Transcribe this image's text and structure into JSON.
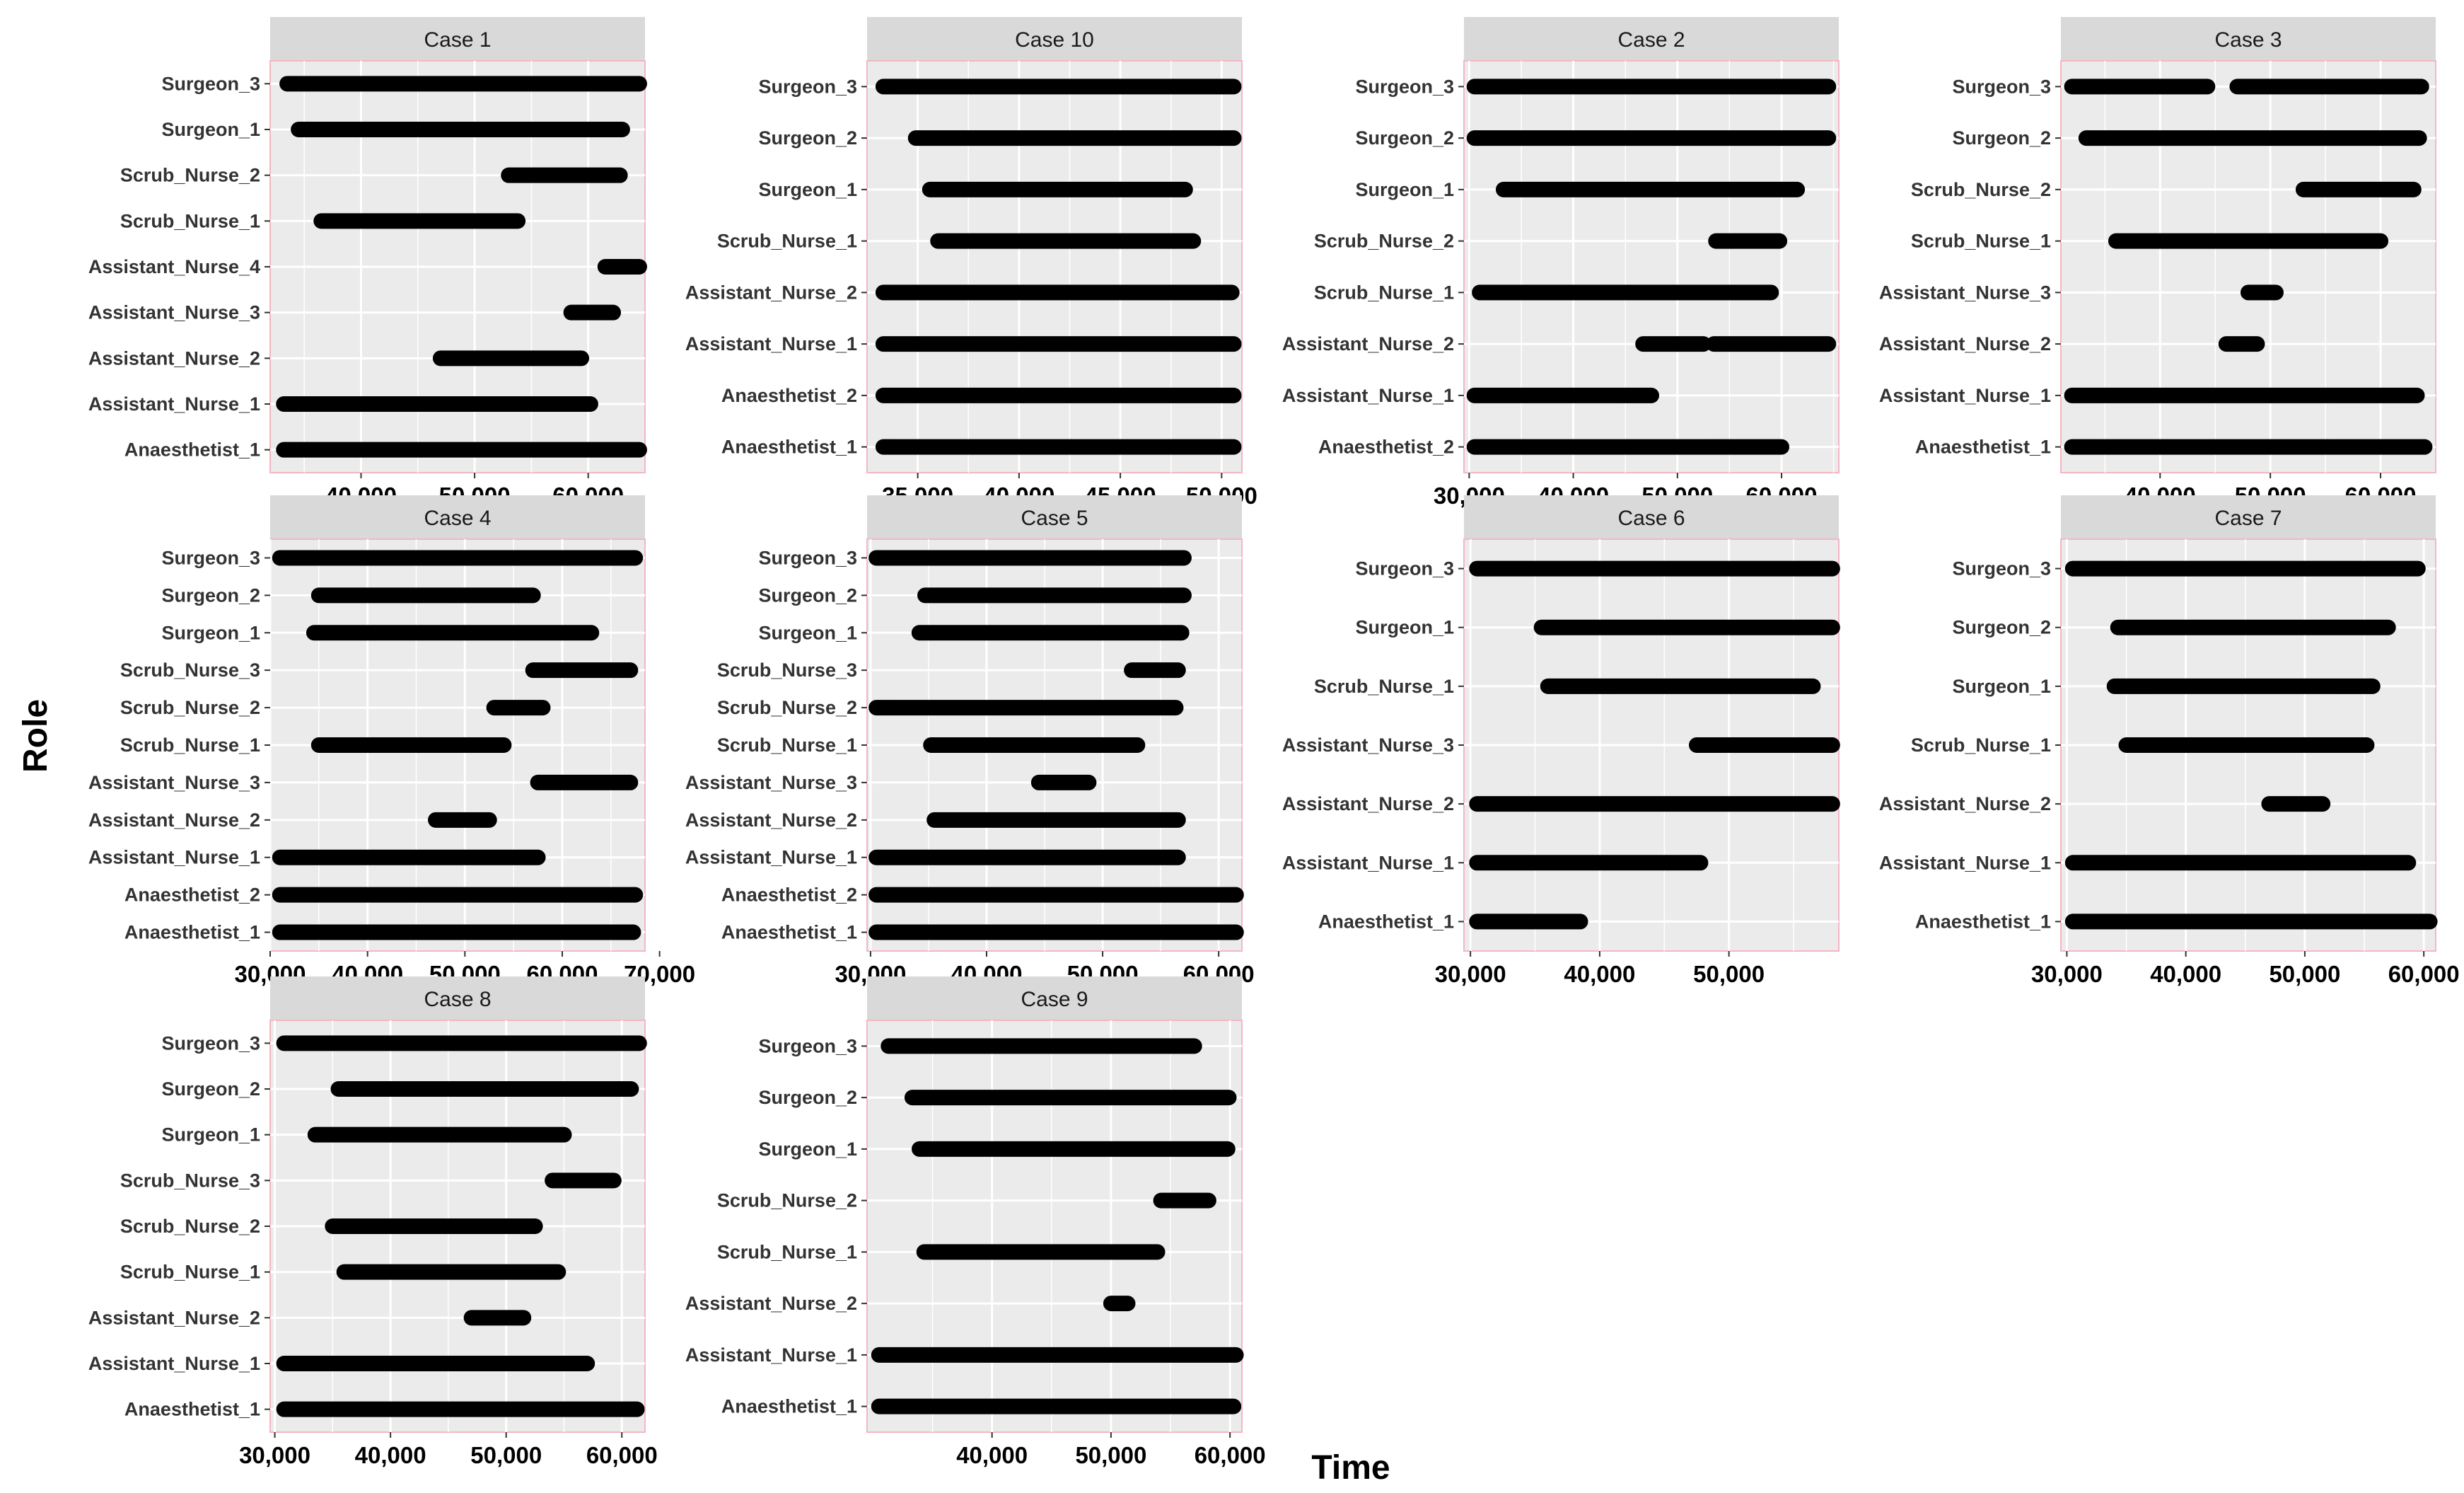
{
  "chart_data": {
    "type": "gantt",
    "xlabel": "Time",
    "ylabel": "Role",
    "grid": true,
    "colors": {
      "segment": "#000000",
      "panel_bg": "#ebebeb",
      "strip_bg": "#d9d9d9",
      "panel_border": "#f4b6c2",
      "grid": "#ffffff"
    },
    "facets": [
      {
        "title": "Case 1",
        "xlim": [
          32000,
          65000
        ],
        "xticks": [
          40000,
          50000,
          60000
        ],
        "xtick_labels": [
          "40,000",
          "50,000",
          "60,000"
        ],
        "roles": [
          "Surgeon_3",
          "Surgeon_1",
          "Scrub_Nurse_2",
          "Scrub_Nurse_1",
          "Assistant_Nurse_4",
          "Assistant_Nurse_3",
          "Assistant_Nurse_2",
          "Assistant_Nurse_1",
          "Anaesthetist_1"
        ],
        "segments": [
          {
            "role": "Surgeon_3",
            "start": 33500,
            "end": 64500
          },
          {
            "role": "Surgeon_1",
            "start": 34500,
            "end": 63000
          },
          {
            "role": "Scrub_Nurse_2",
            "start": 53000,
            "end": 62800
          },
          {
            "role": "Scrub_Nurse_1",
            "start": 36500,
            "end": 53800
          },
          {
            "role": "Assistant_Nurse_4",
            "start": 61500,
            "end": 64500
          },
          {
            "role": "Assistant_Nurse_3",
            "start": 58500,
            "end": 62200
          },
          {
            "role": "Assistant_Nurse_2",
            "start": 47000,
            "end": 59400
          },
          {
            "role": "Assistant_Nurse_1",
            "start": 33200,
            "end": 60200
          },
          {
            "role": "Anaesthetist_1",
            "start": 33200,
            "end": 64500
          }
        ]
      },
      {
        "title": "Case 10",
        "xlim": [
          32500,
          51000
        ],
        "xticks": [
          35000,
          40000,
          45000,
          50000
        ],
        "xtick_labels": [
          "35,000",
          "40,000",
          "45,000",
          "50,000"
        ],
        "roles": [
          "Surgeon_3",
          "Surgeon_2",
          "Surgeon_1",
          "Scrub_Nurse_1",
          "Assistant_Nurse_2",
          "Assistant_Nurse_1",
          "Anaesthetist_2",
          "Anaesthetist_1"
        ],
        "segments": [
          {
            "role": "Surgeon_3",
            "start": 33300,
            "end": 50600
          },
          {
            "role": "Surgeon_2",
            "start": 34900,
            "end": 50600
          },
          {
            "role": "Surgeon_1",
            "start": 35600,
            "end": 48200
          },
          {
            "role": "Scrub_Nurse_1",
            "start": 36000,
            "end": 48600
          },
          {
            "role": "Assistant_Nurse_2",
            "start": 33300,
            "end": 50500
          },
          {
            "role": "Assistant_Nurse_1",
            "start": 33300,
            "end": 50600
          },
          {
            "role": "Anaesthetist_2",
            "start": 33300,
            "end": 50600
          },
          {
            "role": "Anaesthetist_1",
            "start": 33300,
            "end": 50600
          }
        ]
      },
      {
        "title": "Case 2",
        "xlim": [
          29500,
          65500
        ],
        "xticks": [
          30000,
          40000,
          50000,
          60000
        ],
        "xtick_labels": [
          "30,000",
          "40,000",
          "50,000",
          "60,000"
        ],
        "roles": [
          "Surgeon_3",
          "Surgeon_2",
          "Surgeon_1",
          "Scrub_Nurse_2",
          "Scrub_Nurse_1",
          "Assistant_Nurse_2",
          "Assistant_Nurse_1",
          "Anaesthetist_2"
        ],
        "segments": [
          {
            "role": "Surgeon_3",
            "start": 30500,
            "end": 64500
          },
          {
            "role": "Surgeon_2",
            "start": 30500,
            "end": 64500
          },
          {
            "role": "Surgeon_1",
            "start": 33300,
            "end": 61500
          },
          {
            "role": "Scrub_Nurse_2",
            "start": 53700,
            "end": 59800
          },
          {
            "role": "Scrub_Nurse_1",
            "start": 31000,
            "end": 59000
          },
          {
            "role": "Assistant_Nurse_2",
            "start": 46700,
            "end": 52500
          },
          {
            "role": "Assistant_Nurse_2",
            "start": 53500,
            "end": 64500
          },
          {
            "role": "Assistant_Nurse_1",
            "start": 30500,
            "end": 47500
          },
          {
            "role": "Anaesthetist_2",
            "start": 30500,
            "end": 60000
          }
        ]
      },
      {
        "title": "Case 3",
        "xlim": [
          31000,
          65000
        ],
        "xticks": [
          40000,
          50000,
          60000
        ],
        "xtick_labels": [
          "40,000",
          "50,000",
          "60,000"
        ],
        "roles": [
          "Surgeon_3",
          "Surgeon_2",
          "Scrub_Nurse_2",
          "Scrub_Nurse_1",
          "Assistant_Nurse_3",
          "Assistant_Nurse_2",
          "Assistant_Nurse_1",
          "Anaesthetist_1"
        ],
        "segments": [
          {
            "role": "Surgeon_3",
            "start": 32000,
            "end": 44300
          },
          {
            "role": "Surgeon_3",
            "start": 47000,
            "end": 63700
          },
          {
            "role": "Surgeon_2",
            "start": 33300,
            "end": 63500
          },
          {
            "role": "Scrub_Nurse_2",
            "start": 53000,
            "end": 63000
          },
          {
            "role": "Scrub_Nurse_1",
            "start": 36000,
            "end": 60000
          },
          {
            "role": "Assistant_Nurse_3",
            "start": 48000,
            "end": 50500
          },
          {
            "role": "Assistant_Nurse_2",
            "start": 46000,
            "end": 48800
          },
          {
            "role": "Assistant_Nurse_1",
            "start": 32000,
            "end": 63300
          },
          {
            "role": "Anaesthetist_1",
            "start": 32000,
            "end": 64000
          }
        ]
      },
      {
        "title": "Case 4",
        "xlim": [
          30000,
          68500
        ],
        "xticks": [
          30000,
          40000,
          50000,
          60000,
          70000
        ],
        "xtick_labels": [
          "30,000",
          "40,000",
          "50,000",
          "60,000",
          "70,000"
        ],
        "roles": [
          "Surgeon_3",
          "Surgeon_2",
          "Surgeon_1",
          "Scrub_Nurse_3",
          "Scrub_Nurse_2",
          "Scrub_Nurse_1",
          "Assistant_Nurse_3",
          "Assistant_Nurse_2",
          "Assistant_Nurse_1",
          "Anaesthetist_2",
          "Anaesthetist_1"
        ],
        "segments": [
          {
            "role": "Surgeon_3",
            "start": 31000,
            "end": 67500
          },
          {
            "role": "Surgeon_2",
            "start": 35000,
            "end": 57000
          },
          {
            "role": "Surgeon_1",
            "start": 34500,
            "end": 63000
          },
          {
            "role": "Scrub_Nurse_3",
            "start": 57000,
            "end": 67000
          },
          {
            "role": "Scrub_Nurse_2",
            "start": 53000,
            "end": 58000
          },
          {
            "role": "Scrub_Nurse_1",
            "start": 35000,
            "end": 54000
          },
          {
            "role": "Assistant_Nurse_3",
            "start": 57500,
            "end": 67000
          },
          {
            "role": "Assistant_Nurse_2",
            "start": 47000,
            "end": 52500
          },
          {
            "role": "Assistant_Nurse_1",
            "start": 31000,
            "end": 57500
          },
          {
            "role": "Anaesthetist_2",
            "start": 31000,
            "end": 67500
          },
          {
            "role": "Anaesthetist_1",
            "start": 31000,
            "end": 67300
          }
        ]
      },
      {
        "title": "Case 5",
        "xlim": [
          29700,
          62000
        ],
        "xticks": [
          30000,
          40000,
          50000,
          60000
        ],
        "xtick_labels": [
          "30,000",
          "40,000",
          "50,000",
          "60,000"
        ],
        "roles": [
          "Surgeon_3",
          "Surgeon_2",
          "Surgeon_1",
          "Scrub_Nurse_3",
          "Scrub_Nurse_2",
          "Scrub_Nurse_1",
          "Assistant_Nurse_3",
          "Assistant_Nurse_2",
          "Assistant_Nurse_1",
          "Anaesthetist_2",
          "Anaesthetist_1"
        ],
        "segments": [
          {
            "role": "Surgeon_3",
            "start": 30500,
            "end": 57000
          },
          {
            "role": "Surgeon_2",
            "start": 34700,
            "end": 57000
          },
          {
            "role": "Surgeon_1",
            "start": 34200,
            "end": 56800
          },
          {
            "role": "Scrub_Nurse_3",
            "start": 52500,
            "end": 56500
          },
          {
            "role": "Scrub_Nurse_2",
            "start": 30500,
            "end": 56300
          },
          {
            "role": "Scrub_Nurse_1",
            "start": 35200,
            "end": 53000
          },
          {
            "role": "Assistant_Nurse_3",
            "start": 44500,
            "end": 48800
          },
          {
            "role": "Assistant_Nurse_2",
            "start": 35500,
            "end": 56500
          },
          {
            "role": "Assistant_Nurse_1",
            "start": 30500,
            "end": 56500
          },
          {
            "role": "Anaesthetist_2",
            "start": 30500,
            "end": 61500
          },
          {
            "role": "Anaesthetist_1",
            "start": 30500,
            "end": 61500
          }
        ]
      },
      {
        "title": "Case 6",
        "xlim": [
          29500,
          58500
        ],
        "xticks": [
          30000,
          40000,
          50000
        ],
        "xtick_labels": [
          "30,000",
          "40,000",
          "50,000"
        ],
        "roles": [
          "Surgeon_3",
          "Surgeon_1",
          "Scrub_Nurse_1",
          "Assistant_Nurse_3",
          "Assistant_Nurse_2",
          "Assistant_Nurse_1",
          "Anaesthetist_1"
        ],
        "segments": [
          {
            "role": "Surgeon_3",
            "start": 30500,
            "end": 58000
          },
          {
            "role": "Surgeon_1",
            "start": 35500,
            "end": 58000
          },
          {
            "role": "Scrub_Nurse_1",
            "start": 36000,
            "end": 56500
          },
          {
            "role": "Assistant_Nurse_3",
            "start": 47500,
            "end": 58000
          },
          {
            "role": "Assistant_Nurse_2",
            "start": 30500,
            "end": 58000
          },
          {
            "role": "Assistant_Nurse_1",
            "start": 30500,
            "end": 47800
          },
          {
            "role": "Anaesthetist_1",
            "start": 30500,
            "end": 38500
          }
        ]
      },
      {
        "title": "Case 7",
        "xlim": [
          29500,
          61000
        ],
        "xticks": [
          30000,
          40000,
          50000,
          60000
        ],
        "xtick_labels": [
          "30,000",
          "40,000",
          "50,000",
          "60,000"
        ],
        "roles": [
          "Surgeon_3",
          "Surgeon_2",
          "Surgeon_1",
          "Scrub_Nurse_1",
          "Assistant_Nurse_2",
          "Assistant_Nurse_1",
          "Anaesthetist_1"
        ],
        "segments": [
          {
            "role": "Surgeon_3",
            "start": 30500,
            "end": 59500
          },
          {
            "role": "Surgeon_2",
            "start": 34300,
            "end": 57000
          },
          {
            "role": "Surgeon_1",
            "start": 34000,
            "end": 55700
          },
          {
            "role": "Scrub_Nurse_1",
            "start": 35000,
            "end": 55200
          },
          {
            "role": "Assistant_Nurse_2",
            "start": 47000,
            "end": 51500
          },
          {
            "role": "Assistant_Nurse_1",
            "start": 30500,
            "end": 58700
          },
          {
            "role": "Anaesthetist_1",
            "start": 30500,
            "end": 60500
          }
        ]
      },
      {
        "title": "Case 8",
        "xlim": [
          29600,
          62000
        ],
        "xticks": [
          30000,
          40000,
          50000,
          60000
        ],
        "xtick_labels": [
          "30,000",
          "40,000",
          "50,000",
          "60,000"
        ],
        "roles": [
          "Surgeon_3",
          "Surgeon_2",
          "Surgeon_1",
          "Scrub_Nurse_3",
          "Scrub_Nurse_2",
          "Scrub_Nurse_1",
          "Assistant_Nurse_2",
          "Assistant_Nurse_1",
          "Anaesthetist_1"
        ],
        "segments": [
          {
            "role": "Surgeon_3",
            "start": 30800,
            "end": 61500
          },
          {
            "role": "Surgeon_2",
            "start": 35500,
            "end": 60800
          },
          {
            "role": "Surgeon_1",
            "start": 33500,
            "end": 55000
          },
          {
            "role": "Scrub_Nurse_3",
            "start": 54000,
            "end": 59300
          },
          {
            "role": "Scrub_Nurse_2",
            "start": 35000,
            "end": 52500
          },
          {
            "role": "Scrub_Nurse_1",
            "start": 36000,
            "end": 54500
          },
          {
            "role": "Assistant_Nurse_2",
            "start": 47000,
            "end": 51500
          },
          {
            "role": "Assistant_Nurse_1",
            "start": 30800,
            "end": 57000
          },
          {
            "role": "Anaesthetist_1",
            "start": 30800,
            "end": 61300
          }
        ]
      },
      {
        "title": "Case 9",
        "xlim": [
          29500,
          61000
        ],
        "xticks": [
          40000,
          50000,
          60000
        ],
        "xtick_labels": [
          "40,000",
          "50,000",
          "60,000"
        ],
        "roles": [
          "Surgeon_3",
          "Surgeon_2",
          "Surgeon_1",
          "Scrub_Nurse_2",
          "Scrub_Nurse_1",
          "Assistant_Nurse_2",
          "Assistant_Nurse_1",
          "Anaesthetist_1"
        ],
        "segments": [
          {
            "role": "Surgeon_3",
            "start": 31300,
            "end": 57000
          },
          {
            "role": "Surgeon_2",
            "start": 33300,
            "end": 59900
          },
          {
            "role": "Surgeon_1",
            "start": 33900,
            "end": 59800
          },
          {
            "role": "Scrub_Nurse_2",
            "start": 54200,
            "end": 58200
          },
          {
            "role": "Scrub_Nurse_1",
            "start": 34300,
            "end": 53900
          },
          {
            "role": "Assistant_Nurse_2",
            "start": 50000,
            "end": 51400
          },
          {
            "role": "Assistant_Nurse_1",
            "start": 30500,
            "end": 60500
          },
          {
            "role": "Anaesthetist_1",
            "start": 30500,
            "end": 60300
          }
        ]
      }
    ]
  }
}
